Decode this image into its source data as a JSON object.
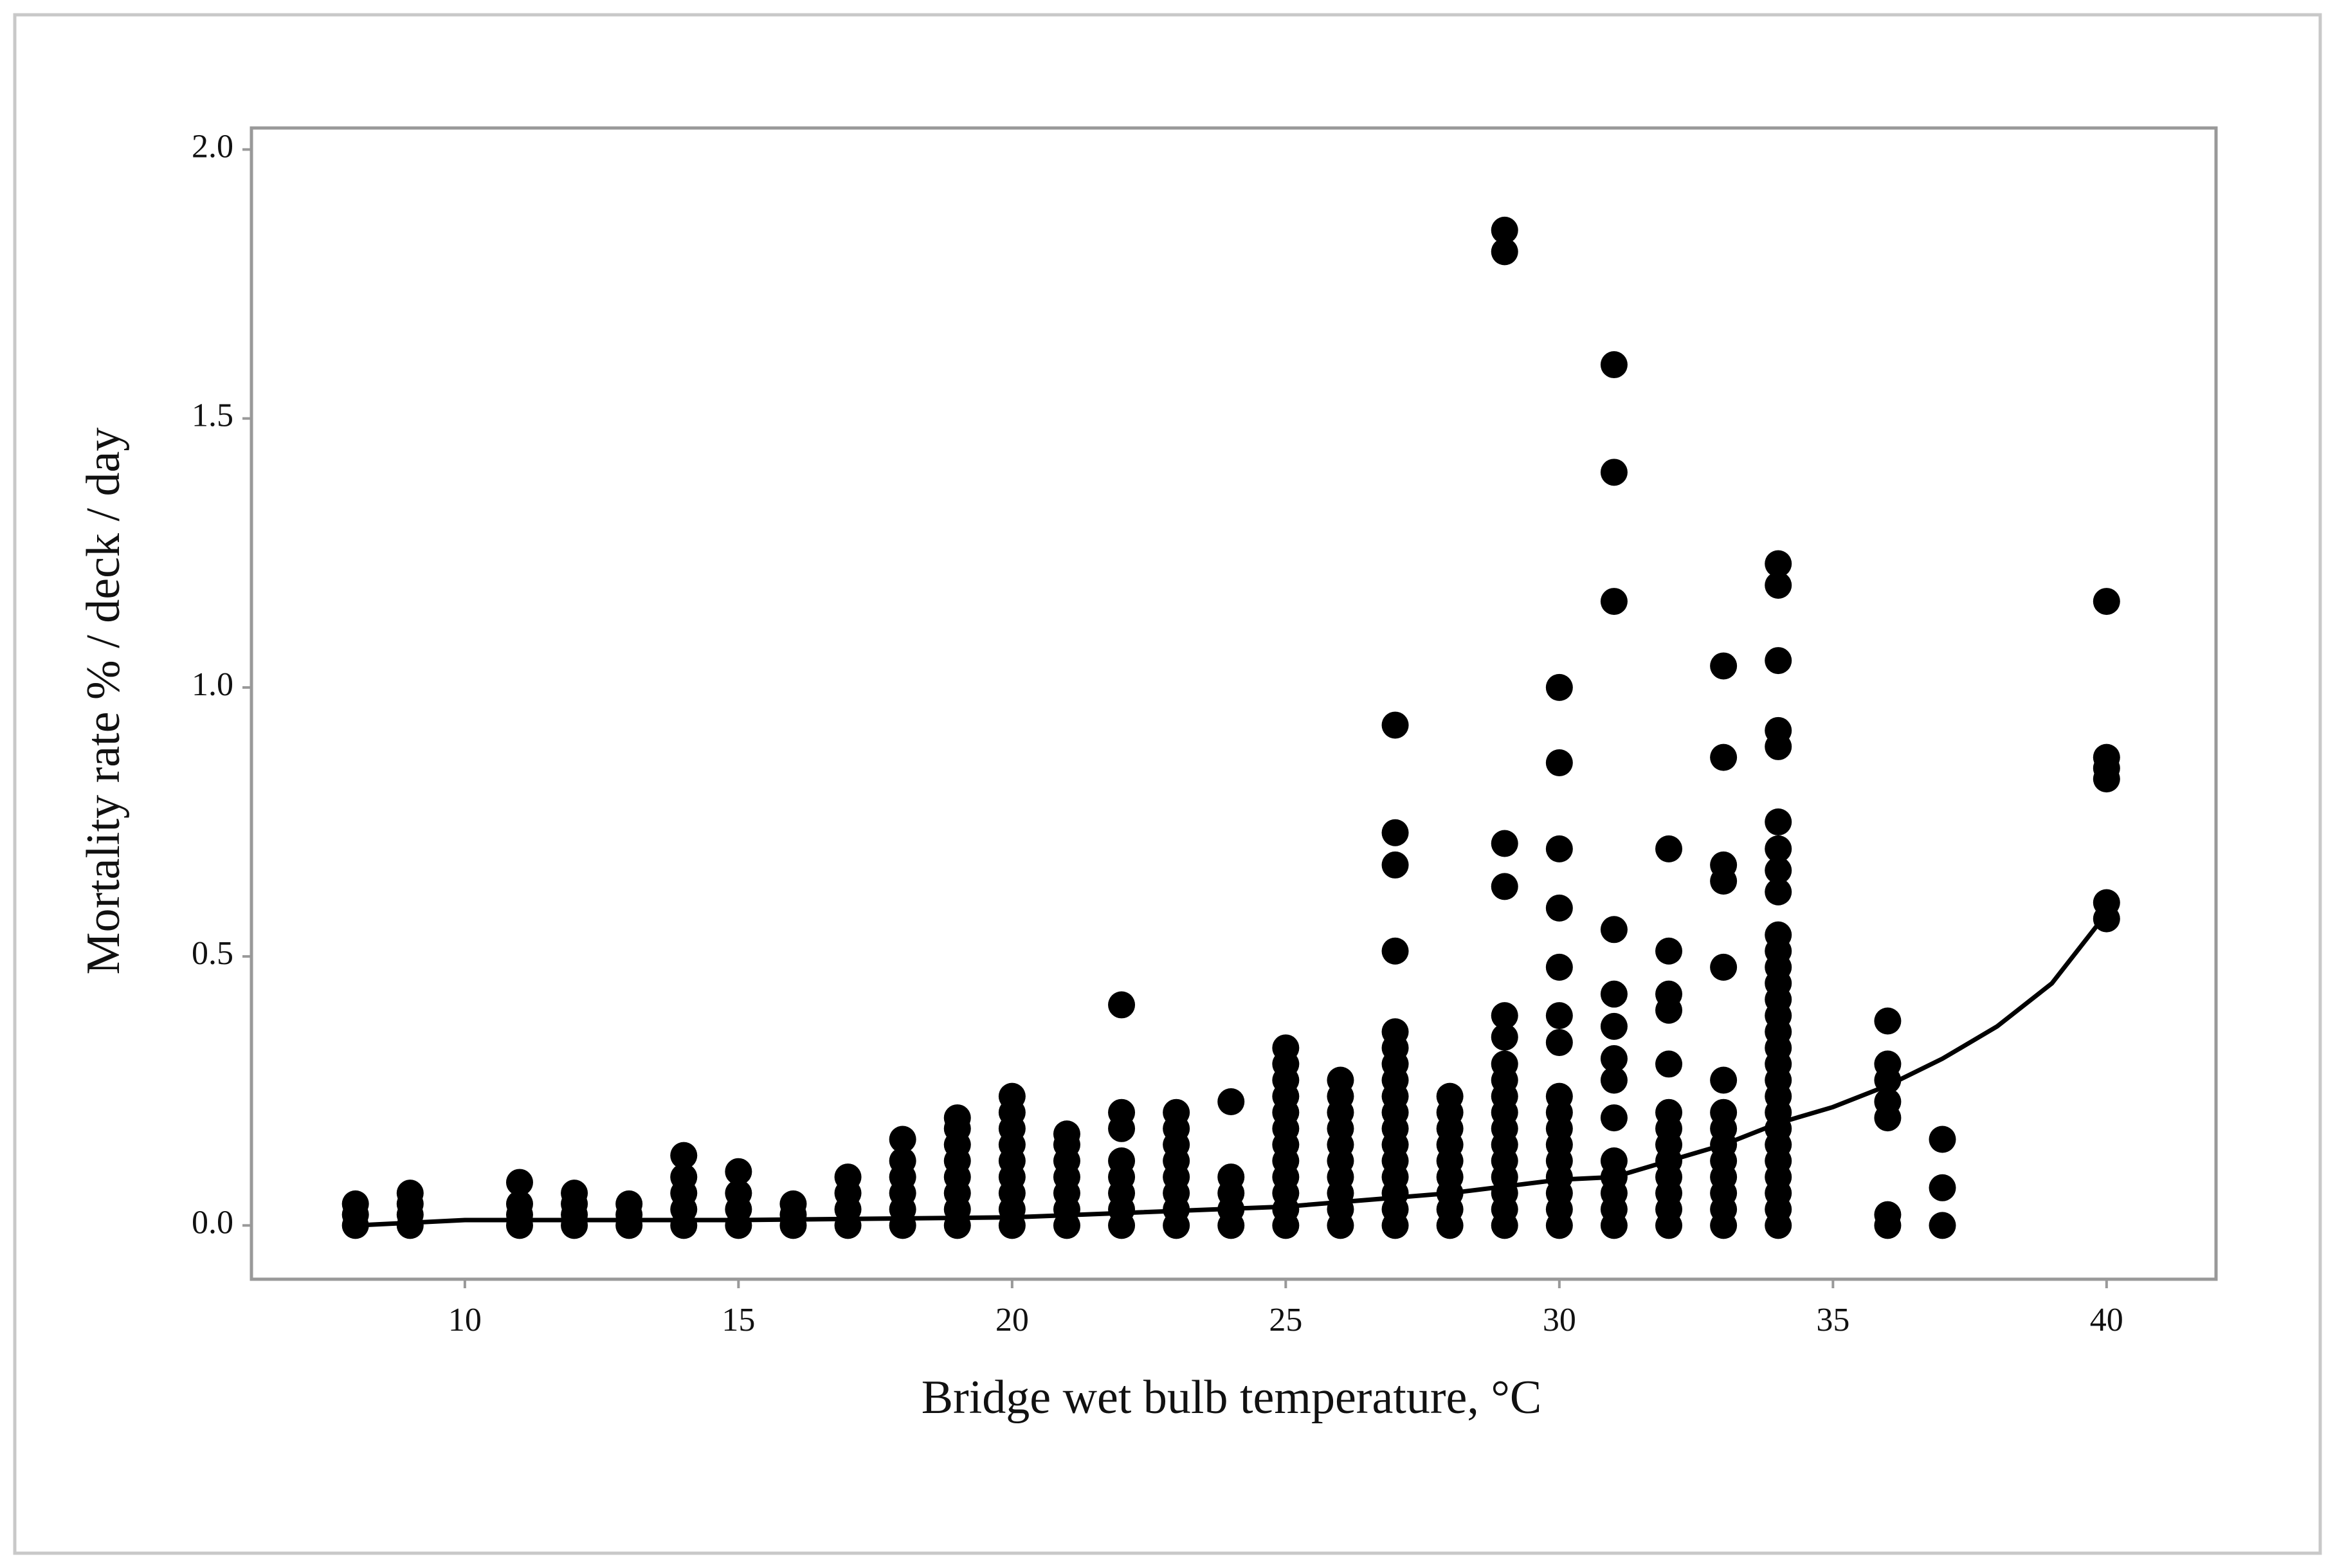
{
  "chart_data": {
    "type": "scatter",
    "x_label": "Bridge wet bulb temperature, °C",
    "y_label": "Mortality rate % / deck / day",
    "xlim": [
      6.1,
      42.0
    ],
    "ylim": [
      -0.1,
      2.04
    ],
    "xticks": [
      10,
      15,
      20,
      25,
      30,
      35,
      40
    ],
    "yticks": [
      {
        "value": 0,
        "label": "0.0"
      },
      {
        "value": 0.5,
        "label": "0.5"
      },
      {
        "value": 1,
        "label": "1.0"
      },
      {
        "value": 1.5,
        "label": "1.5"
      },
      {
        "value": 2,
        "label": "2.0"
      }
    ],
    "grid": false,
    "color": "#000000",
    "columns": [
      {
        "x": 8,
        "y": [
          0,
          0.02,
          0.04
        ]
      },
      {
        "x": 9,
        "y": [
          0,
          0.02,
          0.04,
          0.06
        ]
      },
      {
        "x": 11,
        "y": [
          0,
          0.02,
          0.04,
          0.08
        ]
      },
      {
        "x": 12,
        "y": [
          0,
          0.02,
          0.04,
          0.06
        ]
      },
      {
        "x": 13,
        "y": [
          0,
          0.02,
          0.04
        ]
      },
      {
        "x": 14,
        "y": [
          0,
          0.03,
          0.06,
          0.09,
          0.13
        ]
      },
      {
        "x": 15,
        "y": [
          0,
          0.03,
          0.06,
          0.1
        ]
      },
      {
        "x": 16,
        "y": [
          0,
          0.02,
          0.04
        ]
      },
      {
        "x": 17,
        "y": [
          0,
          0.03,
          0.06,
          0.09
        ]
      },
      {
        "x": 18,
        "y": [
          0,
          0.03,
          0.06,
          0.09,
          0.12,
          0.16
        ]
      },
      {
        "x": 19,
        "y": [
          0,
          0.03,
          0.06,
          0.09,
          0.12,
          0.15,
          0.18,
          0.2
        ]
      },
      {
        "x": 20,
        "y": [
          0,
          0.03,
          0.06,
          0.09,
          0.12,
          0.15,
          0.18,
          0.21,
          0.24
        ]
      },
      {
        "x": 21,
        "y": [
          0,
          0.03,
          0.06,
          0.09,
          0.12,
          0.15,
          0.17
        ]
      },
      {
        "x": 22,
        "y": [
          0,
          0.03,
          0.06,
          0.09,
          0.12,
          0.18,
          0.21,
          0.41
        ]
      },
      {
        "x": 23,
        "y": [
          0,
          0.03,
          0.06,
          0.09,
          0.12,
          0.15,
          0.18,
          0.21
        ]
      },
      {
        "x": 24,
        "y": [
          0,
          0.03,
          0.06,
          0.09,
          0.23
        ]
      },
      {
        "x": 25,
        "y": [
          0,
          0.03,
          0.06,
          0.09,
          0.12,
          0.15,
          0.18,
          0.21,
          0.24,
          0.27,
          0.3,
          0.33
        ]
      },
      {
        "x": 26,
        "y": [
          0,
          0.03,
          0.06,
          0.09,
          0.12,
          0.15,
          0.18,
          0.21,
          0.24,
          0.27
        ]
      },
      {
        "x": 27,
        "y": [
          0,
          0.03,
          0.06,
          0.09,
          0.12,
          0.15,
          0.18,
          0.21,
          0.24,
          0.27,
          0.3,
          0.33,
          0.36,
          0.51,
          0.67,
          0.73,
          0.93
        ]
      },
      {
        "x": 28,
        "y": [
          0,
          0.03,
          0.06,
          0.09,
          0.12,
          0.15,
          0.18,
          0.21,
          0.24
        ]
      },
      {
        "x": 29,
        "y": [
          0,
          0.03,
          0.06,
          0.09,
          0.12,
          0.15,
          0.18,
          0.21,
          0.24,
          0.27,
          0.3,
          0.35,
          0.39,
          0.63,
          0.71,
          1.81,
          1.85
        ]
      },
      {
        "x": 30,
        "y": [
          0,
          0.03,
          0.06,
          0.09,
          0.12,
          0.15,
          0.18,
          0.21,
          0.24,
          0.34,
          0.39,
          0.48,
          0.59,
          0.7,
          0.86,
          1.0
        ]
      },
      {
        "x": 31,
        "y": [
          0,
          0.03,
          0.06,
          0.09,
          0.12,
          0.2,
          0.27,
          0.31,
          0.37,
          0.43,
          0.55,
          1.16,
          1.4,
          1.6
        ]
      },
      {
        "x": 32,
        "y": [
          0,
          0.03,
          0.06,
          0.09,
          0.12,
          0.15,
          0.18,
          0.21,
          0.3,
          0.4,
          0.43,
          0.51,
          0.7
        ]
      },
      {
        "x": 33,
        "y": [
          0,
          0.03,
          0.06,
          0.09,
          0.12,
          0.15,
          0.18,
          0.21,
          0.27,
          0.48,
          0.64,
          0.67,
          0.87,
          1.04
        ]
      },
      {
        "x": 34,
        "y": [
          0,
          0.03,
          0.06,
          0.09,
          0.12,
          0.15,
          0.18,
          0.21,
          0.24,
          0.27,
          0.3,
          0.33,
          0.36,
          0.39,
          0.42,
          0.45,
          0.48,
          0.51,
          0.54,
          0.62,
          0.66,
          0.7,
          0.75,
          0.89,
          0.92,
          1.05,
          1.19,
          1.23
        ]
      },
      {
        "x": 36,
        "y": [
          0,
          0.02,
          0.2,
          0.23,
          0.27,
          0.3,
          0.38
        ]
      },
      {
        "x": 37,
        "y": [
          0,
          0.07,
          0.16
        ]
      },
      {
        "x": 40,
        "y": [
          0.57,
          0.6,
          0.83,
          0.85,
          0.87,
          1.16
        ]
      }
    ],
    "fit": {
      "x": [
        8,
        10,
        15,
        20,
        25,
        28,
        30,
        31,
        32,
        33,
        34,
        35,
        36,
        37,
        38,
        39,
        40
      ],
      "y": [
        0,
        0.01,
        0.01,
        0.015,
        0.035,
        0.06,
        0.085,
        0.09,
        0.12,
        0.15,
        0.19,
        0.22,
        0.26,
        0.31,
        0.37,
        0.45,
        0.58
      ]
    }
  }
}
